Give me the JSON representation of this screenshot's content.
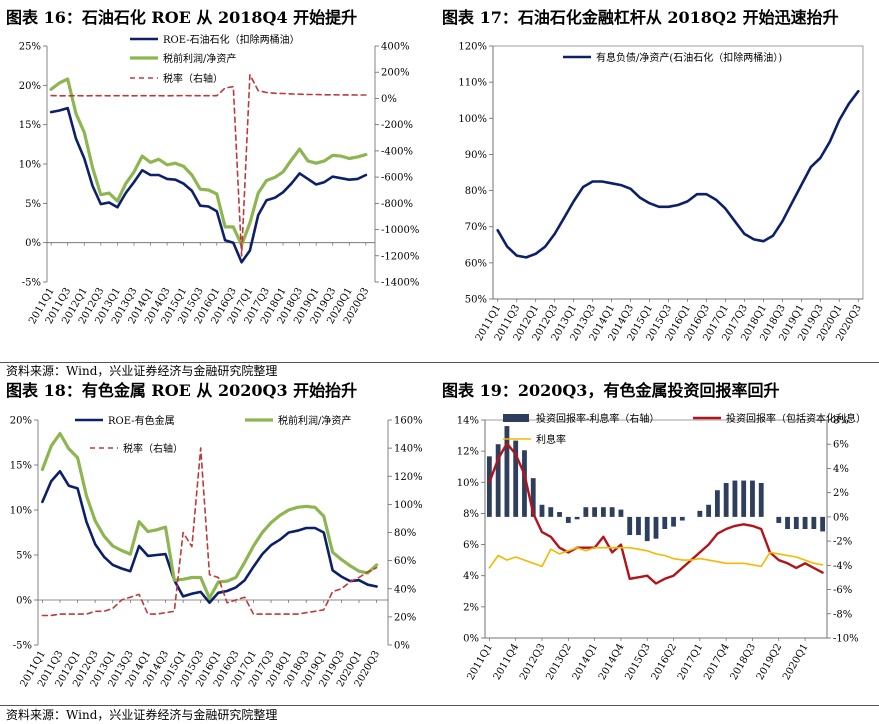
{
  "titles": {
    "c16": "图表 16：石油石化 ROE 从 2018Q4 开始提升",
    "c17": "图表 17：石油石化金融杠杆从 2018Q2 开始迅速抬升",
    "c18": "图表 18：有色金属 ROE 从 2020Q3 开始抬升",
    "c19": "图表 19：2020Q3，有色金属投资回报率回升"
  },
  "source_text": "资料来源：Wind，兴业证券经济与金融研究院整理",
  "colors": {
    "navy": "#0b1f6b",
    "green": "#8db651",
    "red": "#c0383a",
    "bar": "#2e3f5e",
    "darkred": "#b3131b",
    "yellow": "#f5b800"
  },
  "chart_data": [
    {
      "id": "c16",
      "type": "line",
      "x": [
        "2011Q1",
        "2011Q2",
        "2011Q3",
        "2011Q4",
        "2012Q1",
        "2012Q2",
        "2012Q3",
        "2012Q4",
        "2013Q1",
        "2013Q2",
        "2013Q3",
        "2013Q4",
        "2014Q1",
        "2014Q2",
        "2014Q3",
        "2014Q4",
        "2015Q1",
        "2015Q2",
        "2015Q3",
        "2015Q4",
        "2016Q1",
        "2016Q2",
        "2016Q3",
        "2016Q4",
        "2017Q1",
        "2017Q2",
        "2017Q3",
        "2017Q4",
        "2018Q1",
        "2018Q2",
        "2018Q3",
        "2018Q4",
        "2019Q1",
        "2019Q2",
        "2019Q3",
        "2019Q4",
        "2020Q1",
        "2020Q2",
        "2020Q3"
      ],
      "xticks": [
        "2011Q1",
        "2011Q3",
        "2012Q1",
        "2012Q3",
        "2013Q1",
        "2013Q3",
        "2014Q1",
        "2014Q3",
        "2015Q1",
        "2015Q3",
        "2016Q1",
        "2016Q3",
        "2017Q1",
        "2017Q3",
        "2018Q1",
        "2018Q3",
        "2019Q1",
        "2019Q3",
        "2020Q1",
        "2020Q3"
      ],
      "yleft": {
        "min": -5,
        "max": 25,
        "step": 5,
        "suffix": "%"
      },
      "yright": {
        "min": -1400,
        "max": 400,
        "step": 200,
        "suffix": "%"
      },
      "series": [
        {
          "name": "ROE-石油石化（扣除两桶油）",
          "axis": "left",
          "style": "navy",
          "values": [
            16.6,
            16.8,
            17.1,
            13.2,
            10.7,
            7.2,
            4.9,
            5.1,
            4.5,
            6.3,
            7.7,
            9.2,
            8.6,
            8.6,
            8.1,
            8.0,
            7.5,
            6.6,
            4.7,
            4.6,
            4.0,
            0.3,
            0.0,
            -2.5,
            -1.0,
            3.5,
            5.4,
            5.7,
            6.4,
            7.5,
            8.8,
            8.1,
            7.4,
            7.7,
            8.4,
            8.2,
            8.0,
            8.1,
            8.6
          ]
        },
        {
          "name": "税前利润/净资产",
          "axis": "left",
          "style": "green",
          "values": [
            19.5,
            20.3,
            20.8,
            16.4,
            14.0,
            9.5,
            6.1,
            6.3,
            5.3,
            7.5,
            9.0,
            11.0,
            10.2,
            10.6,
            9.9,
            10.1,
            9.7,
            8.6,
            6.8,
            6.7,
            6.2,
            2.0,
            2.0,
            -0.3,
            2.5,
            6.3,
            7.9,
            8.3,
            9.0,
            10.5,
            11.9,
            10.4,
            10.1,
            10.4,
            11.1,
            11.0,
            10.7,
            10.9,
            11.2
          ]
        },
        {
          "name": "税率（右轴）",
          "axis": "right",
          "style": "reddash",
          "values": [
            22,
            20,
            20,
            21,
            20,
            21,
            21,
            20,
            21,
            21,
            20,
            21,
            21,
            21,
            20,
            21,
            22,
            21,
            21,
            21,
            21,
            80,
            90,
            -1200,
            180,
            60,
            45,
            40,
            38,
            35,
            32,
            30,
            30,
            28,
            28,
            27,
            27,
            26,
            26
          ]
        }
      ]
    },
    {
      "id": "c17",
      "type": "line",
      "x": [
        "2011Q1",
        "2011Q2",
        "2011Q3",
        "2011Q4",
        "2012Q1",
        "2012Q2",
        "2012Q3",
        "2012Q4",
        "2013Q1",
        "2013Q2",
        "2013Q3",
        "2013Q4",
        "2014Q1",
        "2014Q2",
        "2014Q3",
        "2014Q4",
        "2015Q1",
        "2015Q2",
        "2015Q3",
        "2015Q4",
        "2016Q1",
        "2016Q2",
        "2016Q3",
        "2016Q4",
        "2017Q1",
        "2017Q2",
        "2017Q3",
        "2017Q4",
        "2018Q1",
        "2018Q2",
        "2018Q3",
        "2018Q4",
        "2019Q1",
        "2019Q2",
        "2019Q3",
        "2019Q4",
        "2020Q1",
        "2020Q2",
        "2020Q3"
      ],
      "xticks": [
        "2011Q1",
        "2011Q3",
        "2012Q1",
        "2012Q3",
        "2013Q1",
        "2013Q3",
        "2014Q1",
        "2014Q3",
        "2015Q1",
        "2015Q3",
        "2016Q1",
        "2016Q3",
        "2017Q1",
        "2017Q3",
        "2018Q1",
        "2018Q3",
        "2019Q1",
        "2019Q3",
        "2020Q1",
        "2020Q3"
      ],
      "yleft": {
        "min": 50,
        "max": 120,
        "step": 10,
        "suffix": "%"
      },
      "series": [
        {
          "name": "有息负债/净资产(石油石化（扣除两桶油）)",
          "axis": "left",
          "style": "navy",
          "values": [
            69.0,
            64.5,
            62.0,
            61.5,
            62.5,
            64.5,
            68.0,
            72.5,
            77.0,
            81.0,
            82.5,
            82.5,
            82.0,
            81.5,
            80.5,
            78.0,
            76.5,
            75.5,
            75.5,
            76.0,
            77.0,
            79.0,
            79.0,
            77.5,
            75.0,
            71.5,
            68.0,
            66.5,
            66.0,
            67.5,
            71.5,
            76.5,
            81.5,
            86.5,
            89.0,
            93.5,
            99.5,
            104.0,
            107.5
          ]
        }
      ]
    },
    {
      "id": "c18",
      "type": "line",
      "x": [
        "2011Q1",
        "2011Q2",
        "2011Q3",
        "2011Q4",
        "2012Q1",
        "2012Q2",
        "2012Q3",
        "2012Q4",
        "2013Q1",
        "2013Q2",
        "2013Q3",
        "2013Q4",
        "2014Q1",
        "2014Q2",
        "2014Q3",
        "2014Q4",
        "2015Q1",
        "2015Q2",
        "2015Q3",
        "2015Q4",
        "2016Q1",
        "2016Q2",
        "2016Q3",
        "2016Q4",
        "2017Q1",
        "2017Q2",
        "2017Q3",
        "2017Q4",
        "2018Q1",
        "2018Q2",
        "2018Q3",
        "2018Q4",
        "2019Q1",
        "2019Q2",
        "2019Q3",
        "2019Q4",
        "2020Q1",
        "2020Q2",
        "2020Q3"
      ],
      "xticks": [
        "2011Q1",
        "2011Q3",
        "2012Q1",
        "2012Q3",
        "2013Q1",
        "2013Q3",
        "2014Q1",
        "2014Q3",
        "2015Q1",
        "2015Q3",
        "2016Q1",
        "2016Q3",
        "2017Q1",
        "2017Q3",
        "2018Q1",
        "2018Q3",
        "2019Q1",
        "2019Q3",
        "2020Q1",
        "2020Q3"
      ],
      "yleft": {
        "min": -5,
        "max": 20,
        "step": 5,
        "suffix": "%"
      },
      "yright": {
        "min": 0,
        "max": 160,
        "step": 20,
        "suffix": "%"
      },
      "series": [
        {
          "name": "ROE-有色金属",
          "axis": "left",
          "style": "navy",
          "values": [
            10.9,
            13.2,
            14.3,
            12.7,
            12.4,
            8.7,
            6.2,
            4.8,
            3.9,
            3.5,
            3.2,
            6.0,
            4.9,
            5.0,
            5.1,
            2.2,
            0.4,
            0.7,
            0.9,
            -0.3,
            0.8,
            1.0,
            1.4,
            2.2,
            3.7,
            5.1,
            6.1,
            6.7,
            7.5,
            7.7,
            8.0,
            8.0,
            7.5,
            3.3,
            2.6,
            2.1,
            2.2,
            1.7,
            1.5
          ]
        },
        {
          "name": "税前利润/净资产",
          "axis": "left",
          "style": "green",
          "values": [
            14.5,
            17.1,
            18.5,
            16.8,
            15.8,
            11.6,
            8.8,
            7.1,
            6.0,
            5.5,
            5.1,
            8.7,
            7.6,
            7.8,
            8.1,
            2.2,
            2.3,
            2.5,
            2.5,
            0.2,
            2.0,
            2.1,
            2.5,
            4.2,
            6.0,
            7.5,
            8.6,
            9.4,
            10.0,
            10.3,
            10.4,
            10.3,
            9.3,
            5.3,
            4.5,
            3.8,
            3.2,
            3.0,
            3.9
          ]
        },
        {
          "name": "税率（右轴）",
          "axis": "right",
          "style": "reddash",
          "values": [
            21,
            21,
            22,
            22,
            22,
            22,
            24,
            24,
            26,
            32,
            34,
            36,
            22,
            22,
            23,
            24,
            80,
            70,
            140,
            50,
            48,
            30,
            32,
            34,
            22,
            22,
            22,
            22,
            22,
            22,
            23,
            24,
            25,
            38,
            40,
            45,
            48,
            52,
            55
          ]
        }
      ]
    },
    {
      "id": "c19",
      "type": "bar+line",
      "x": [
        "2011Q1",
        "2011Q2",
        "2011Q3",
        "2011Q4",
        "2012Q1",
        "2012Q2",
        "2012Q3",
        "2012Q4",
        "2013Q1",
        "2013Q2",
        "2013Q3",
        "2013Q4",
        "2014Q1",
        "2014Q2",
        "2014Q3",
        "2014Q4",
        "2015Q1",
        "2015Q2",
        "2015Q3",
        "2015Q4",
        "2016Q1",
        "2016Q2",
        "2016Q3",
        "2016Q4",
        "2017Q1",
        "2017Q2",
        "2017Q3",
        "2017Q4",
        "2018Q1",
        "2018Q2",
        "2018Q3",
        "2018Q4",
        "2019Q1",
        "2019Q2",
        "2019Q3",
        "2019Q4",
        "2020Q1",
        "2020Q2",
        "2020Q3"
      ],
      "xticks": [
        "2011Q1",
        "2011Q4",
        "2012Q3",
        "2013Q2",
        "2014Q1",
        "2014Q4",
        "2015Q3",
        "2016Q2",
        "2017Q1",
        "2017Q4",
        "2018Q3",
        "2019Q2",
        "2020Q1"
      ],
      "yleft": {
        "min": 0,
        "max": 14,
        "step": 2,
        "suffix": "%"
      },
      "yright": {
        "min": -10,
        "max": 8,
        "step": 2,
        "suffix": "%"
      },
      "series": [
        {
          "name": "投资回报率-利息率（右轴）",
          "axis": "right",
          "style": "bar",
          "values": [
            5.0,
            6.0,
            7.5,
            6.3,
            5.5,
            3.2,
            1.0,
            0.8,
            0.4,
            -0.5,
            -0.2,
            0.8,
            0.8,
            0.8,
            0.8,
            0.6,
            -1.5,
            -1.5,
            -2.0,
            -1.8,
            -1.0,
            -0.8,
            -0.3,
            0.0,
            0.5,
            1.0,
            2.2,
            2.8,
            3.0,
            3.0,
            3.0,
            2.8,
            0.0,
            -0.5,
            -1.0,
            -1.0,
            -1.0,
            -1.0,
            -1.2
          ]
        },
        {
          "name": "投资回报率（包括资本化利息）",
          "axis": "left",
          "style": "darkred",
          "values": [
            10.0,
            11.5,
            12.5,
            11.8,
            10.5,
            8.0,
            6.8,
            6.5,
            5.8,
            5.5,
            5.8,
            5.8,
            5.8,
            6.5,
            5.5,
            6.0,
            3.8,
            3.9,
            4.0,
            3.5,
            3.8,
            4.0,
            4.5,
            5.0,
            5.5,
            6.0,
            6.7,
            7.0,
            7.2,
            7.3,
            7.2,
            7.0,
            5.5,
            5.0,
            4.8,
            4.5,
            4.8,
            4.5,
            4.2
          ]
        },
        {
          "name": "利息率",
          "axis": "left",
          "style": "yellow",
          "values": [
            4.5,
            5.3,
            5.0,
            5.2,
            5.0,
            4.8,
            4.6,
            5.7,
            5.4,
            5.6,
            5.8,
            5.6,
            5.8,
            5.8,
            5.8,
            5.8,
            5.8,
            5.7,
            5.6,
            5.4,
            5.3,
            5.1,
            5.0,
            5.0,
            5.1,
            5.0,
            4.9,
            4.8,
            4.8,
            4.8,
            4.7,
            4.6,
            5.5,
            5.4,
            5.3,
            5.2,
            5.0,
            4.8,
            4.7
          ]
        }
      ]
    }
  ]
}
